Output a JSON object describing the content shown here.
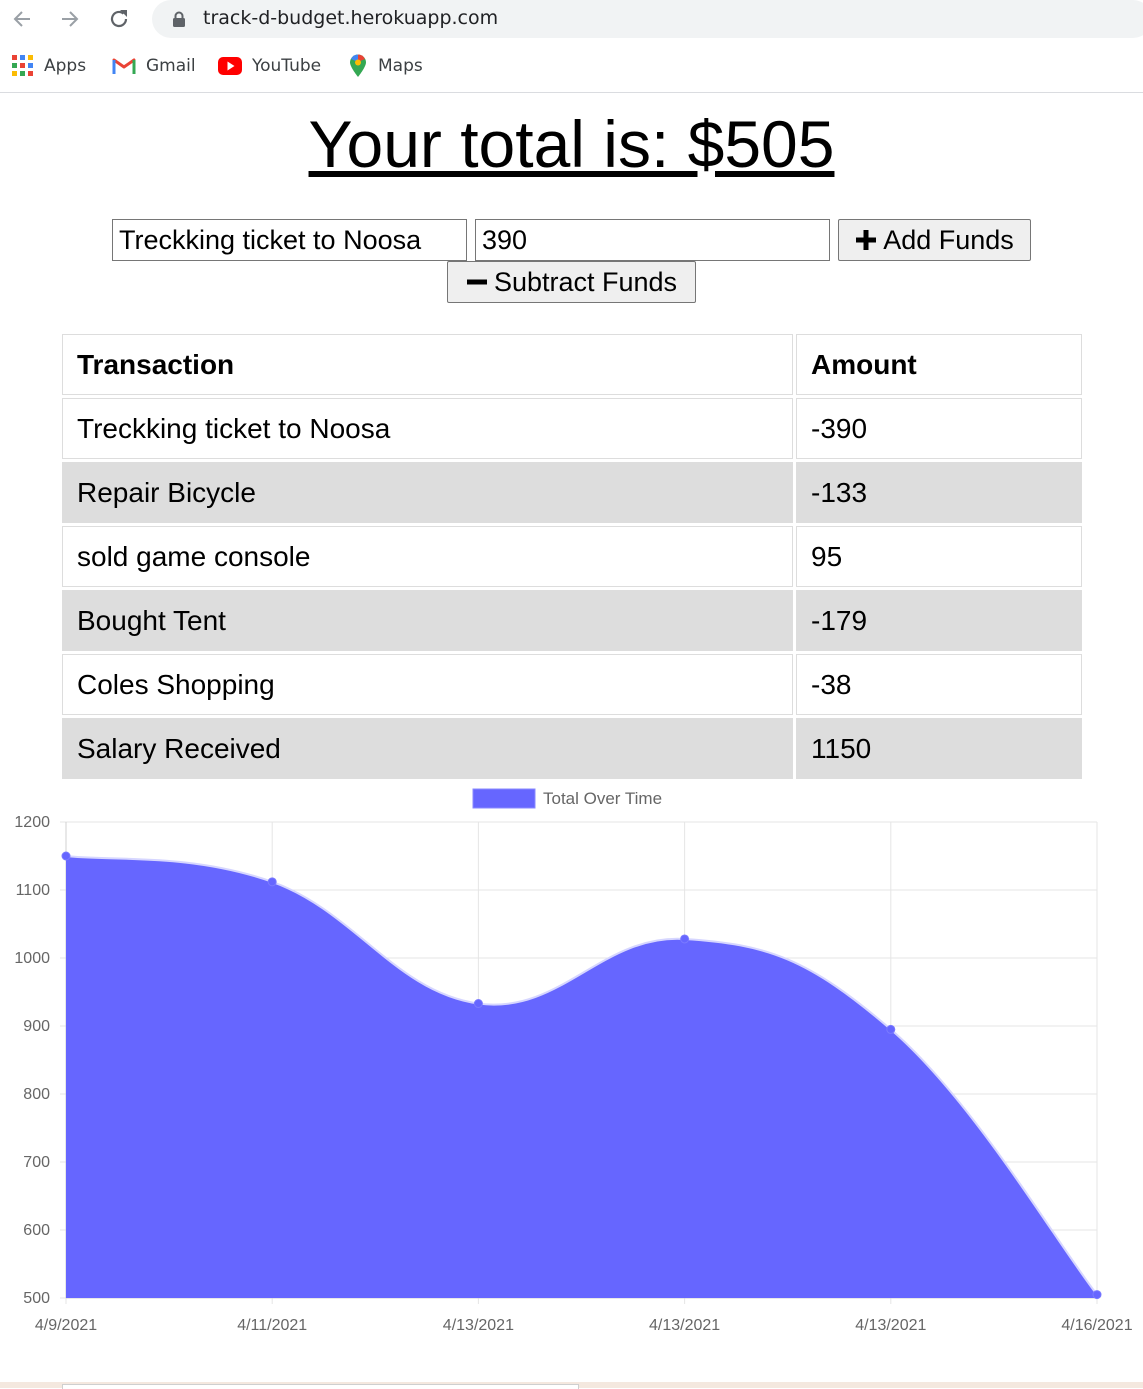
{
  "browser": {
    "url": "track-d-budget.herokuapp.com",
    "bookmarks": [
      {
        "label": "Apps",
        "icon": "apps-grid-icon"
      },
      {
        "label": "Gmail",
        "icon": "gmail-icon"
      },
      {
        "label": "YouTube",
        "icon": "youtube-icon"
      },
      {
        "label": "Maps",
        "icon": "maps-icon"
      }
    ]
  },
  "page": {
    "title": "Your total is: $505",
    "form": {
      "name_value": "Treckking ticket to Noosa",
      "amount_value": "390",
      "add_label": "Add Funds",
      "subtract_label": "Subtract Funds"
    },
    "table": {
      "headers": [
        "Transaction",
        "Amount"
      ],
      "rows": [
        [
          "Treckking ticket to Noosa",
          "-390"
        ],
        [
          "Repair Bicycle",
          "-133"
        ],
        [
          "sold game console",
          "95"
        ],
        [
          "Bought Tent",
          "-179"
        ],
        [
          "Coles Shopping",
          "-38"
        ],
        [
          "Salary Received",
          "1150"
        ]
      ]
    }
  },
  "chart_data": {
    "type": "area",
    "categories": [
      "4/9/2021",
      "4/11/2021",
      "4/13/2021",
      "4/13/2021",
      "4/13/2021",
      "4/16/2021"
    ],
    "series": [
      {
        "name": "Total Over Time",
        "values": [
          1150,
          1112,
          933,
          1028,
          895,
          505
        ],
        "color": "#6666ff"
      }
    ],
    "yticks": [
      1200,
      1100,
      1000,
      900,
      800,
      700,
      600,
      500
    ],
    "ylim": [
      500,
      1200
    ],
    "grid": true,
    "legend": "top-center"
  }
}
